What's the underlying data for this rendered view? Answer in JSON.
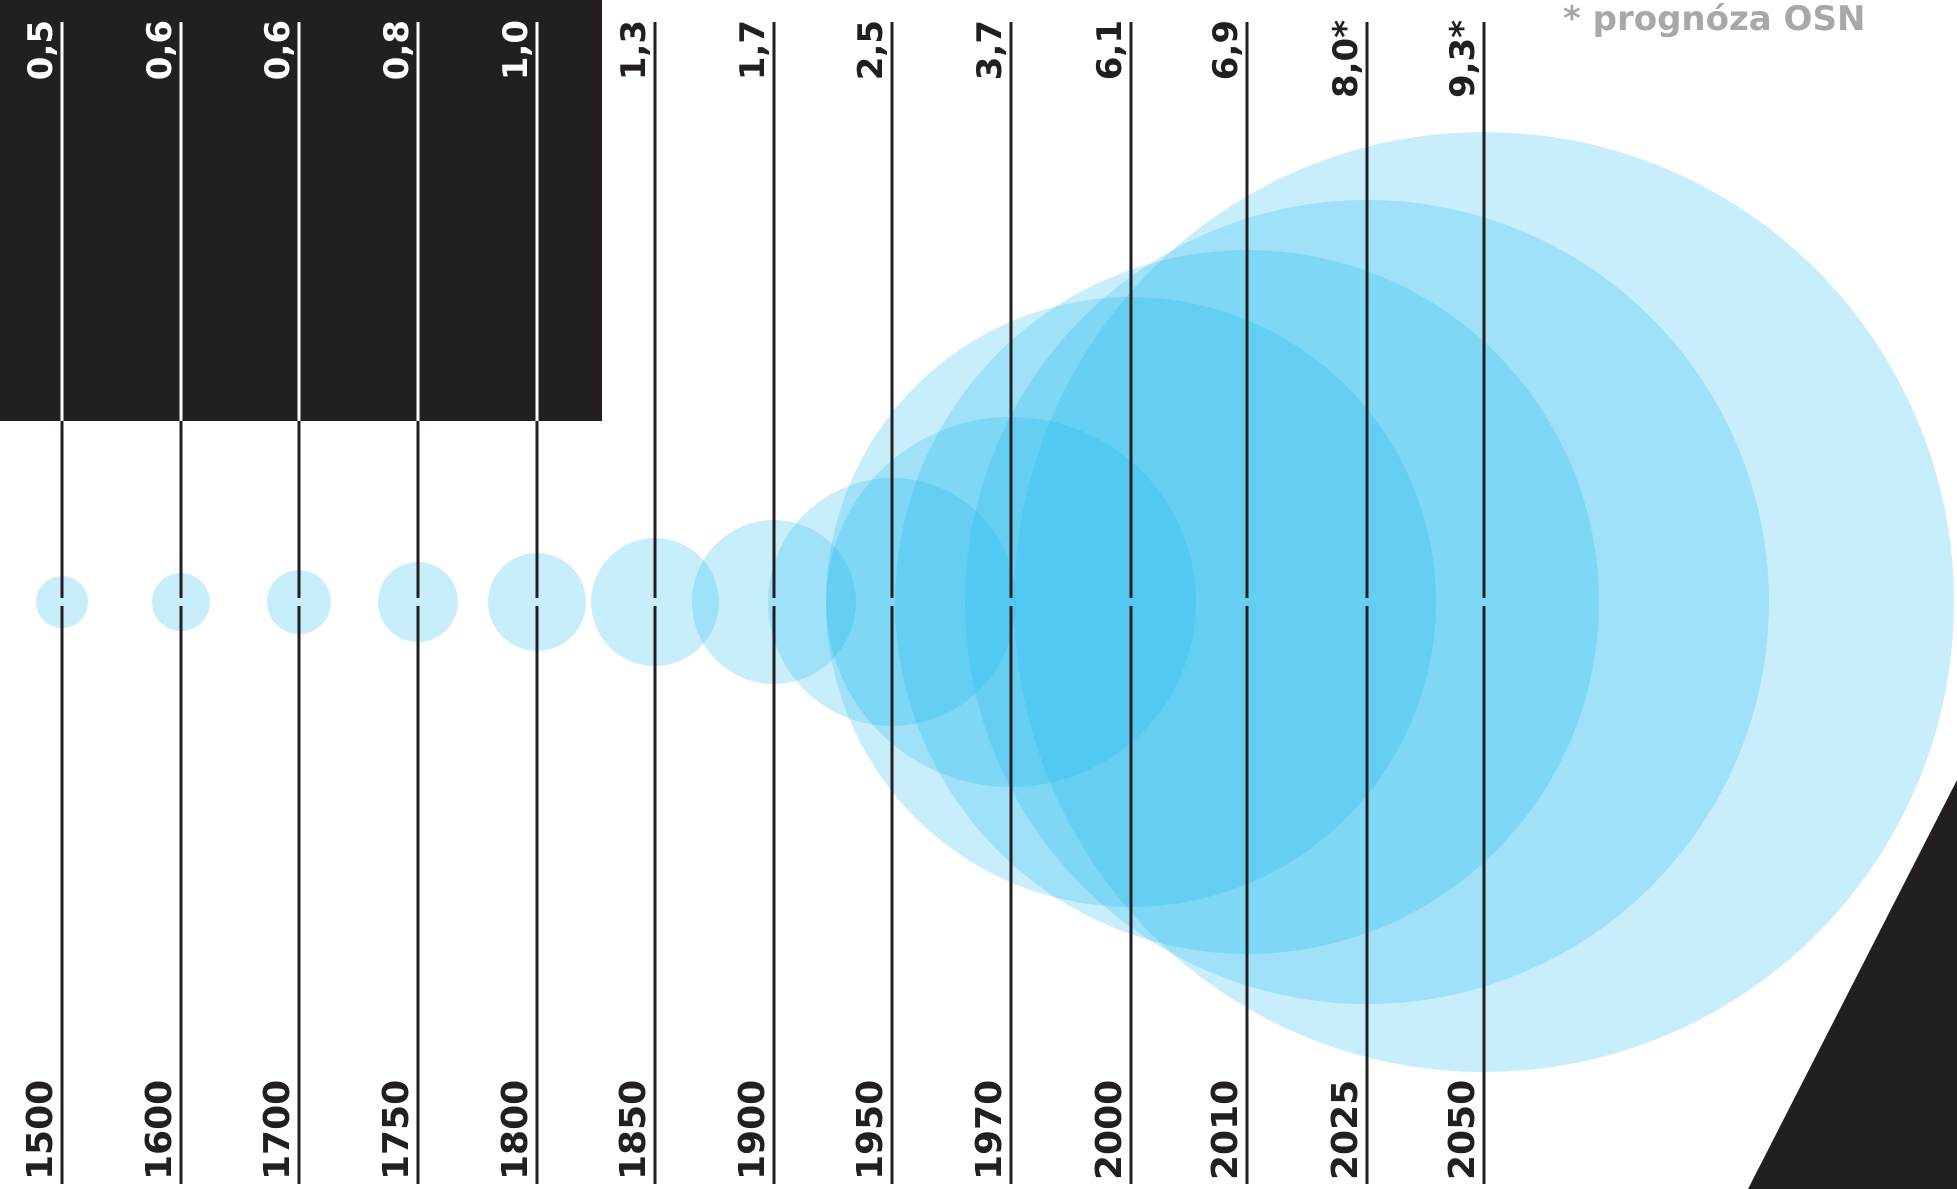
{
  "colors": {
    "bubble": "#1ab8ef",
    "bubble_light": "#c6e8fa",
    "dark": "#231f20",
    "background": "#ffffff",
    "note": "#a8a8a8"
  },
  "chart_data": {
    "type": "bubble",
    "title": "",
    "xlabel": "",
    "ylabel": "",
    "orientation": "rotated-90-clockwise",
    "x": [
      "1500",
      "1600",
      "1700",
      "1750",
      "1800",
      "1850",
      "1900",
      "1950",
      "1970",
      "2000",
      "2010",
      "2025",
      "2050"
    ],
    "values": [
      0.5,
      0.6,
      0.6,
      0.8,
      1.0,
      1.3,
      1.7,
      2.5,
      3.7,
      6.1,
      6.9,
      8.0,
      9.3
    ],
    "value_labels": [
      "0,5",
      "0,6",
      "0,6",
      "0,8",
      "1,0",
      "1,3",
      "1,7",
      "2,5",
      "3,7",
      "6,1",
      "6,9",
      "8,0*",
      "9,3*"
    ],
    "projected": [
      false,
      false,
      false,
      false,
      false,
      false,
      false,
      false,
      false,
      false,
      false,
      true,
      true
    ],
    "note": "* prognóza OSN"
  }
}
